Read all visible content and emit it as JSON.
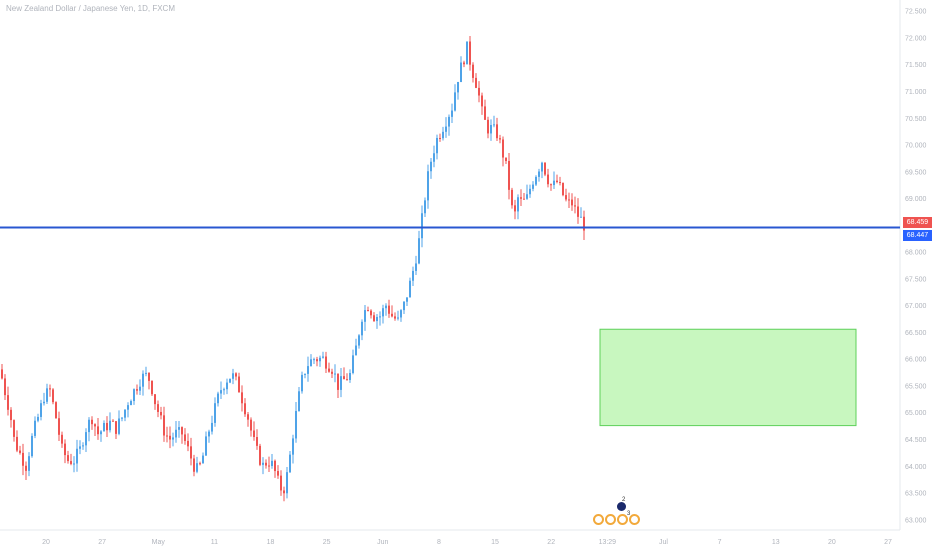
{
  "chart": {
    "title": "New Zealand Dollar / Japanese Yen, 1D, FXCM",
    "colors": {
      "up": "#4fa3e8",
      "down": "#ef5350",
      "level_line": "#2957d1",
      "zone_fill": "#c8f7bf",
      "zone_border": "#5ed05a",
      "axis_text": "#b0b4bc",
      "close_tag": "#ef5350",
      "level_tag": "#2962ff"
    },
    "price_axis_labels": [
      "72.500",
      "72.000",
      "71.500",
      "71.000",
      "70.500",
      "70.000",
      "69.500",
      "69.000",
      "68.500",
      "68.000",
      "67.500",
      "67.000",
      "66.500",
      "66.000",
      "65.500",
      "65.000",
      "64.500",
      "64.000",
      "63.500",
      "63.000"
    ],
    "time_axis_labels": [
      "20",
      "27",
      "May",
      "11",
      "18",
      "25",
      "Jun",
      "8",
      "15",
      "22",
      "13:29",
      "Jul",
      "7",
      "13",
      "20",
      "27"
    ],
    "close_price": "68.459",
    "level_price": "68.447",
    "events": {
      "count_top": "2",
      "count_bottom": "3"
    }
  },
  "chart_data": {
    "type": "candlestick",
    "title": "New Zealand Dollar / Japanese Yen, 1D, FXCM",
    "y_range": [
      62.8,
      72.7
    ],
    "level_line": 68.45,
    "target_zone": {
      "top": 66.55,
      "bottom": 64.75,
      "from": "Jun 22",
      "to": "Jul 24"
    },
    "last_close": 68.459,
    "path": [
      [
        0,
        65.8
      ],
      [
        6,
        65.3
      ],
      [
        10,
        65.0
      ],
      [
        14,
        64.5
      ],
      [
        18,
        64.3
      ],
      [
        26,
        64.0
      ],
      [
        33,
        64.6
      ],
      [
        38,
        64.9
      ],
      [
        44,
        65.3
      ],
      [
        50,
        65.4
      ],
      [
        56,
        64.9
      ],
      [
        62,
        64.3
      ],
      [
        68,
        64.1
      ],
      [
        74,
        64.1
      ],
      [
        80,
        64.3
      ],
      [
        86,
        64.7
      ],
      [
        92,
        64.9
      ],
      [
        98,
        64.6
      ],
      [
        104,
        64.7
      ],
      [
        110,
        64.8
      ],
      [
        116,
        64.7
      ],
      [
        122,
        64.9
      ],
      [
        128,
        65.2
      ],
      [
        134,
        65.4
      ],
      [
        140,
        65.6
      ],
      [
        145,
        65.7
      ],
      [
        150,
        65.6
      ],
      [
        155,
        65.2
      ],
      [
        160,
        64.9
      ],
      [
        165,
        64.6
      ],
      [
        170,
        64.5
      ],
      [
        176,
        64.6
      ],
      [
        182,
        64.6
      ],
      [
        188,
        64.3
      ],
      [
        194,
        64.0
      ],
      [
        198,
        63.9
      ],
      [
        202,
        64.1
      ],
      [
        208,
        64.6
      ],
      [
        214,
        65.0
      ],
      [
        220,
        65.4
      ],
      [
        226,
        65.6
      ],
      [
        232,
        65.7
      ],
      [
        238,
        65.5
      ],
      [
        243,
        65.2
      ],
      [
        248,
        64.9
      ],
      [
        253,
        64.5
      ],
      [
        258,
        64.2
      ],
      [
        263,
        64.0
      ],
      [
        268,
        64.1
      ],
      [
        273,
        64.0
      ],
      [
        278,
        63.7
      ],
      [
        283,
        63.5
      ],
      [
        288,
        63.9
      ],
      [
        293,
        64.6
      ],
      [
        298,
        65.2
      ],
      [
        303,
        65.7
      ],
      [
        308,
        65.9
      ],
      [
        313,
        66.0
      ],
      [
        318,
        66.0
      ],
      [
        323,
        66.0
      ],
      [
        328,
        65.9
      ],
      [
        333,
        65.8
      ],
      [
        338,
        65.5
      ],
      [
        344,
        65.6
      ],
      [
        350,
        65.7
      ],
      [
        356,
        66.2
      ],
      [
        362,
        66.8
      ],
      [
        368,
        67.0
      ],
      [
        374,
        66.8
      ],
      [
        380,
        66.8
      ],
      [
        386,
        67.0
      ],
      [
        392,
        66.8
      ],
      [
        398,
        66.7
      ],
      [
        404,
        67.0
      ],
      [
        410,
        67.4
      ],
      [
        415,
        67.8
      ],
      [
        420,
        68.3
      ],
      [
        424,
        68.9
      ],
      [
        428,
        69.4
      ],
      [
        432,
        69.8
      ],
      [
        437,
        70.1
      ],
      [
        442,
        70.3
      ],
      [
        447,
        70.5
      ],
      [
        452,
        70.7
      ],
      [
        457,
        71.2
      ],
      [
        462,
        71.5
      ],
      [
        467,
        71.8
      ],
      [
        472,
        71.4
      ],
      [
        477,
        71.1
      ],
      [
        482,
        70.6
      ],
      [
        487,
        70.3
      ],
      [
        492,
        70.3
      ],
      [
        497,
        70.2
      ],
      [
        502,
        69.9
      ],
      [
        507,
        69.5
      ],
      [
        511,
        68.9
      ],
      [
        514,
        68.6
      ],
      [
        518,
        69.0
      ],
      [
        522,
        68.9
      ],
      [
        527,
        69.0
      ],
      [
        532,
        69.3
      ],
      [
        537,
        69.5
      ],
      [
        542,
        69.7
      ],
      [
        547,
        69.4
      ],
      [
        552,
        69.2
      ],
      [
        557,
        69.3
      ],
      [
        562,
        69.1
      ],
      [
        567,
        68.9
      ],
      [
        572,
        68.9
      ],
      [
        577,
        68.7
      ],
      [
        581,
        68.6
      ],
      [
        585,
        68.46
      ]
    ]
  }
}
